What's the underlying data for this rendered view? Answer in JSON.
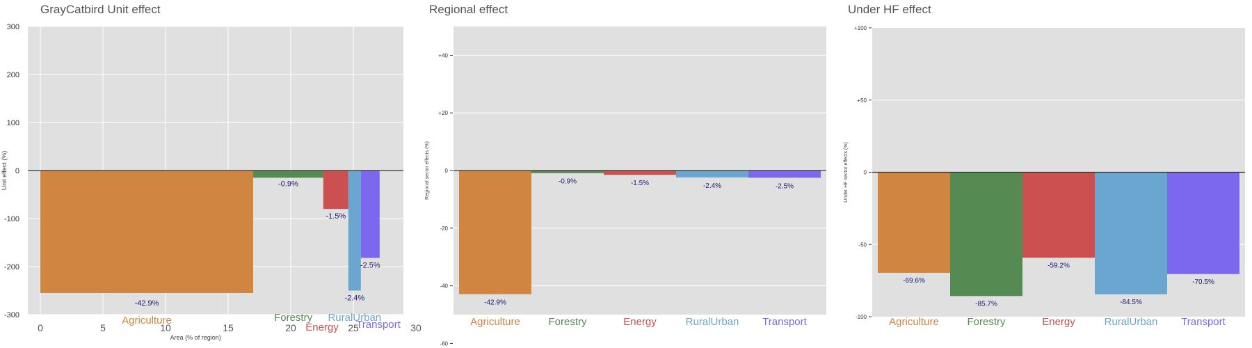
{
  "colors": {
    "Agriculture": "#D08540",
    "Forestry": "#558B53",
    "Energy": "#CC5050",
    "RuralUrban": "#6BA6D0",
    "Transport": "#7B68EE",
    "panel_bg": "#E0E0E0",
    "value_label": "#1a1a6e"
  },
  "chart_data": [
    {
      "type": "bar",
      "title": "GrayCatbird Unit effect",
      "xlabel": "Area (% of region)",
      "ylabel": "Unit effect (%)",
      "xlim": [
        -1,
        29
      ],
      "ylim": [
        -300,
        300
      ],
      "xticks": [
        0,
        5,
        10,
        15,
        20,
        25,
        30
      ],
      "yticks": [
        300,
        200,
        100,
        0,
        -100,
        -200,
        -300
      ],
      "ytick_labels": [
        "300",
        "200",
        "100",
        "0",
        "-100",
        "-200",
        "-300"
      ],
      "bars": [
        {
          "category": "Agriculture",
          "x_start": 0.0,
          "x_end": 17.0,
          "value": -255,
          "label": "-42.9%"
        },
        {
          "category": "Forestry",
          "x_start": 17.0,
          "x_end": 22.6,
          "value": -15,
          "label": "-0.9%"
        },
        {
          "category": "Energy",
          "x_start": 22.6,
          "x_end": 24.6,
          "value": -80,
          "label": "-1.5%"
        },
        {
          "category": "RuralUrban",
          "x_start": 24.6,
          "x_end": 25.6,
          "value": -250,
          "label": "-2.4%"
        },
        {
          "category": "Transport",
          "x_start": 25.6,
          "x_end": 27.1,
          "value": -182,
          "label": "-2.5%"
        }
      ],
      "category_labels": [
        "Agriculture",
        "Forestry",
        "Energy",
        "RuralUrban",
        "Transport"
      ]
    },
    {
      "type": "bar",
      "title": "Regional effect",
      "ylabel": "Regional sector effects (%)",
      "ylim": [
        -50,
        50
      ],
      "yticks": [
        40,
        20,
        0,
        -20,
        -40,
        -60
      ],
      "ytick_labels": [
        "+40",
        "+20",
        "0",
        "-20",
        "-40",
        "-60"
      ],
      "categories": [
        "Agriculture",
        "Forestry",
        "Energy",
        "RuralUrban",
        "Transport"
      ],
      "values": [
        -42.9,
        -0.9,
        -1.5,
        -2.4,
        -2.5
      ],
      "labels": [
        "-42.9%",
        "-0.9%",
        "-1.5%",
        "-2.4%",
        "-2.5%"
      ]
    },
    {
      "type": "bar",
      "title": "Under HF effect",
      "ylabel": "Under HF sector effects (%)",
      "ylim": [
        -100,
        100
      ],
      "yticks": [
        100,
        50,
        0,
        -50,
        -100
      ],
      "ytick_labels": [
        "+100",
        "+50",
        "0",
        "-50",
        "-100"
      ],
      "categories": [
        "Agriculture",
        "Forestry",
        "Energy",
        "RuralUrban",
        "Transport"
      ],
      "values": [
        -69.6,
        -85.7,
        -59.2,
        -84.5,
        -70.5
      ],
      "labels": [
        "-69.6%",
        "-85.7%",
        "-59.2%",
        "-84.5%",
        "-70.5%"
      ]
    }
  ]
}
